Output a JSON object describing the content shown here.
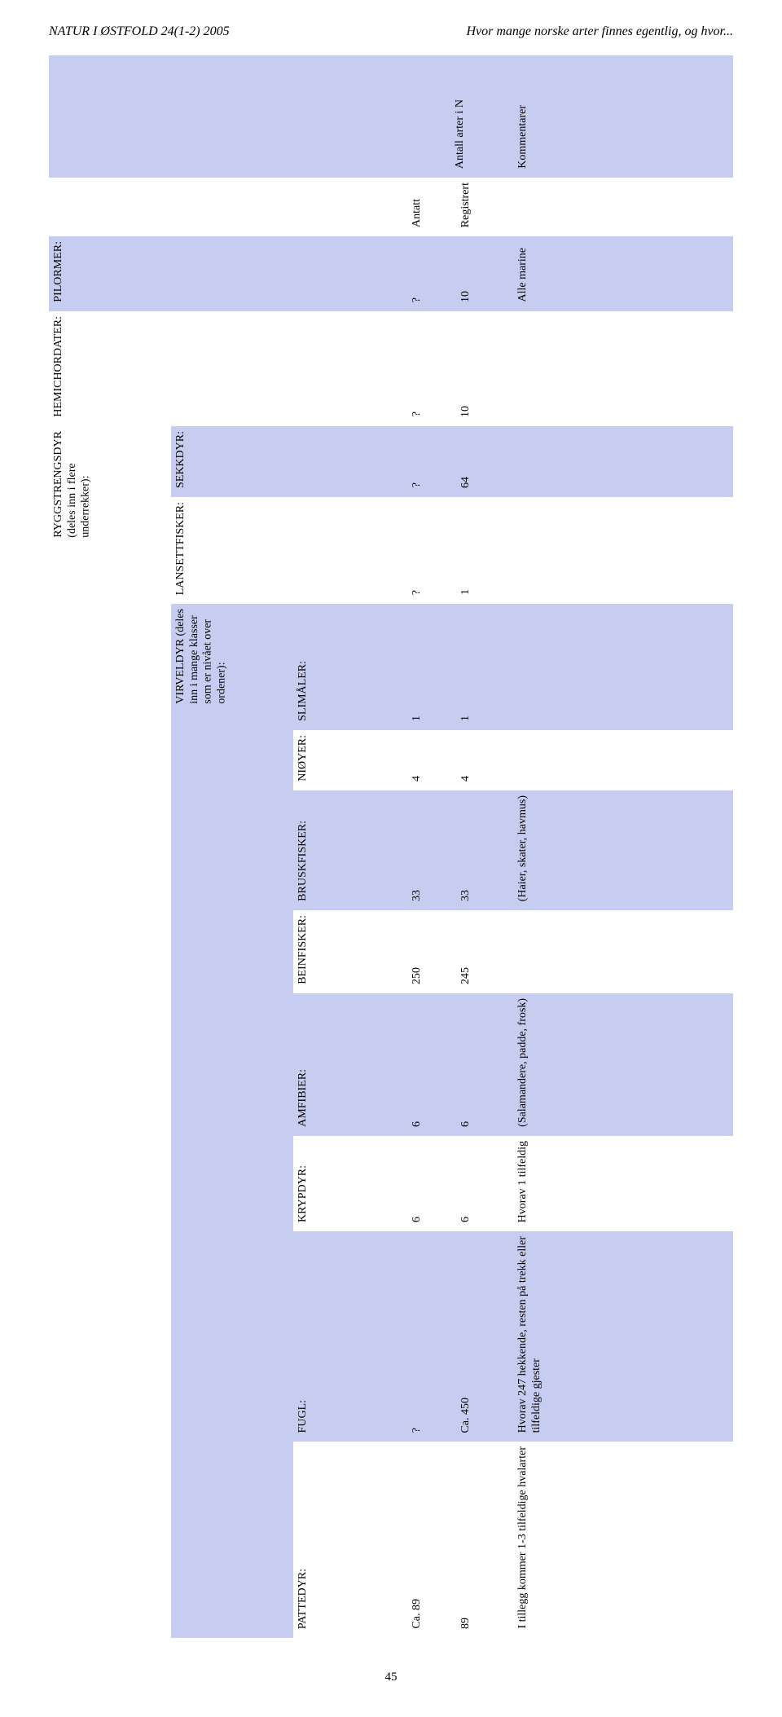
{
  "header": {
    "left": "NATUR I ØSTFOLD 24(1-2) 2005",
    "right": "Hvor mange norske arter finnes egentlig, og hvor..."
  },
  "columns": {
    "group_header": "Antall arter i N",
    "antatt": "Antatt",
    "registrert": "Registrert",
    "kommentarer": "Kommentarer"
  },
  "rows": {
    "pilormer": {
      "cat1": "PILORMER:",
      "antatt": "?",
      "reg": "10",
      "komm": "Alle marine"
    },
    "hemichordater": {
      "cat1": "HEMICHORDATER:",
      "antatt": "?",
      "reg": "10",
      "komm": ""
    },
    "ryggstreng": {
      "cat1": "RYGGSTRENGSDYR\n(deles inn i flere\nunderrekker):"
    },
    "sekkdyr": {
      "cat2": "SEKKDYR:",
      "antatt": "?",
      "reg": "64",
      "komm": ""
    },
    "lansett": {
      "cat2": "LANSETTFISKER:",
      "antatt": "?",
      "reg": "1",
      "komm": ""
    },
    "virveldyr": {
      "cat2": "VIRVELDYR (deles\ninn i mange klasser\nsom er nivået over\nordener):"
    },
    "slimaaler": {
      "label": "SLIMÅLER:",
      "antatt": "1",
      "reg": "1",
      "komm": ""
    },
    "nioyer": {
      "label": "NIØYER:",
      "antatt": "4",
      "reg": "4",
      "komm": ""
    },
    "bruskfisker": {
      "label": "BRUSKFISKER:",
      "antatt": "33",
      "reg": "33",
      "komm": "(Haier, skater, havmus)"
    },
    "beinfisker": {
      "label": "BEINFISKER:",
      "antatt": "250",
      "reg": "245",
      "komm": ""
    },
    "amfibier": {
      "label": "AMFIBIER:",
      "antatt": "6",
      "reg": "6",
      "komm": "(Salamandere, padde, frosk)"
    },
    "krypdyr": {
      "label": "KRYPDYR:",
      "antatt": "6",
      "reg": "6",
      "komm": "Hvorav 1 tilfeldig"
    },
    "fugl": {
      "label": "FUGL:",
      "antatt": "?",
      "reg": "Ca. 450",
      "komm": "Hvorav 247 hekkende, resten på trekk eller\ntilfeldige gjester"
    },
    "pattedyr": {
      "label": "PATTEDYR:",
      "antatt": "Ca. 89",
      "reg": "89",
      "komm": "I tillegg kommer 1-3 tilfeldige hvalarter"
    }
  },
  "page_number": "45",
  "colors": {
    "band": "#c7cdf0",
    "background": "#ffffff",
    "text": "#000000"
  },
  "typography": {
    "body_font": "Times New Roman",
    "body_size_pt": 11,
    "header_size_pt": 12,
    "header_style": "italic"
  }
}
